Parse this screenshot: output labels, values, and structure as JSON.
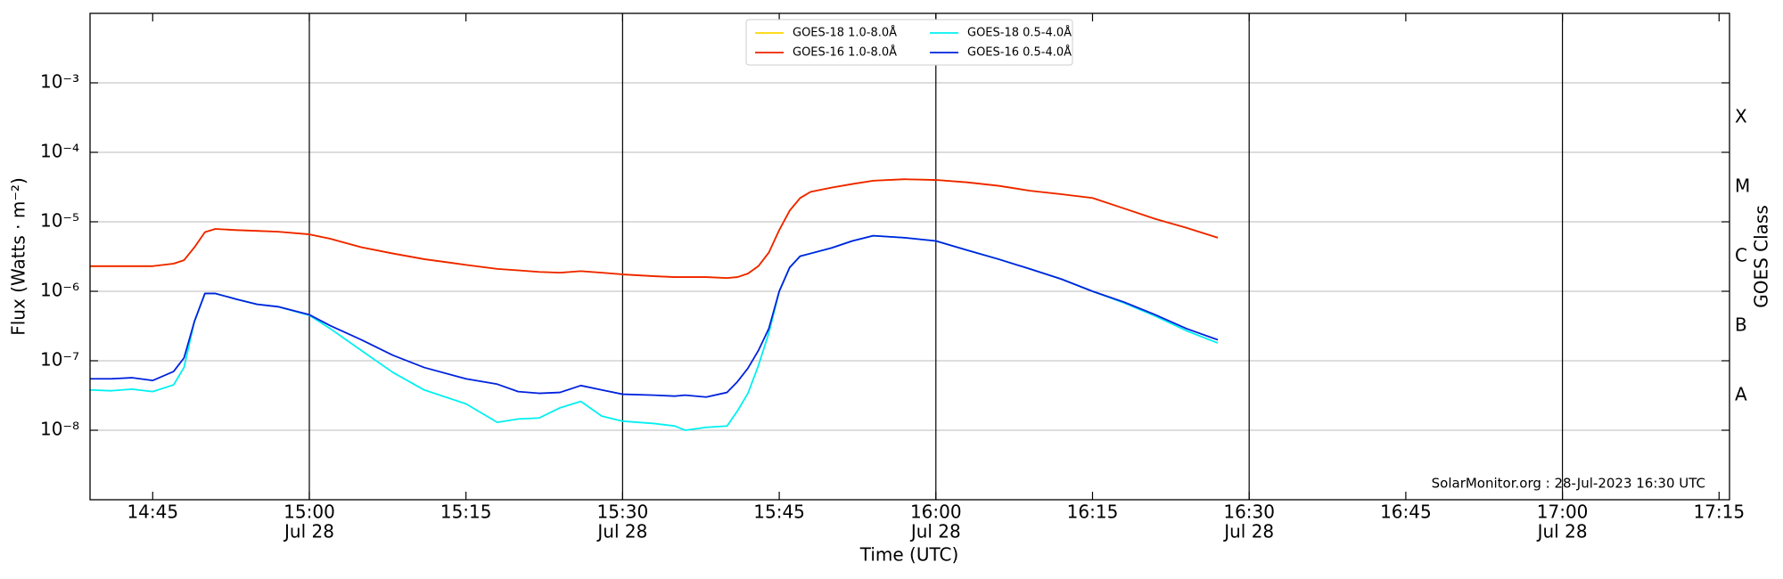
{
  "chart_data": {
    "type": "line",
    "xlabel": "Time (UTC)",
    "ylabel": "Flux (Watts · m⁻²)",
    "y2label": "GOES Class",
    "footnote": "SolarMonitor.org : 28-Jul-2023 16:30 UTC",
    "log_y": true,
    "grid": true,
    "legend": "top-center",
    "xlim": [
      "14:39",
      "17:16"
    ],
    "ylim": [
      1e-09,
      0.01
    ],
    "xticks": [
      {
        "value": "14:45",
        "label": "14:45"
      },
      {
        "value": "15:00",
        "label": "15:00",
        "date": "Jul 28"
      },
      {
        "value": "15:15",
        "label": "15:15"
      },
      {
        "value": "15:30",
        "label": "15:30",
        "date": "Jul 28"
      },
      {
        "value": "15:45",
        "label": "15:45"
      },
      {
        "value": "16:00",
        "label": "16:00",
        "date": "Jul 28"
      },
      {
        "value": "16:15",
        "label": "16:15"
      },
      {
        "value": "16:30",
        "label": "16:30",
        "date": "Jul 28"
      },
      {
        "value": "16:45",
        "label": "16:45"
      },
      {
        "value": "17:00",
        "label": "17:00",
        "date": "Jul 28"
      },
      {
        "value": "17:15",
        "label": "17:15"
      }
    ],
    "yticks": [
      {
        "value": 1e-08,
        "label": "10⁻⁸"
      },
      {
        "value": 1e-07,
        "label": "10⁻⁷"
      },
      {
        "value": 1e-06,
        "label": "10⁻⁶"
      },
      {
        "value": 1e-05,
        "label": "10⁻⁵"
      },
      {
        "value": 0.0001,
        "label": "10⁻⁴"
      },
      {
        "value": 0.001,
        "label": "10⁻³"
      }
    ],
    "class_ticks": [
      {
        "value": 3.16e-08,
        "label": "A"
      },
      {
        "value": 3.16e-07,
        "label": "B"
      },
      {
        "value": 3.16e-06,
        "label": "C"
      },
      {
        "value": 3.16e-05,
        "label": "M"
      },
      {
        "value": 0.000316,
        "label": "X"
      }
    ],
    "x": [
      "14:39",
      "14:41",
      "14:43",
      "14:45",
      "14:47",
      "14:48",
      "14:49",
      "14:50",
      "14:51",
      "14:53",
      "14:55",
      "14:57",
      "15:00",
      "15:02",
      "15:05",
      "15:08",
      "15:11",
      "15:15",
      "15:18",
      "15:20",
      "15:22",
      "15:24",
      "15:26",
      "15:28",
      "15:30",
      "15:33",
      "15:35",
      "15:36",
      "15:38",
      "15:40",
      "15:41",
      "15:42",
      "15:43",
      "15:44",
      "15:45",
      "15:46",
      "15:47",
      "15:48",
      "15:50",
      "15:52",
      "15:54",
      "15:57",
      "16:00",
      "16:03",
      "16:06",
      "16:09",
      "16:12",
      "16:15",
      "16:18",
      "16:21",
      "16:24",
      "16:27"
    ],
    "series": [
      {
        "name": "GOES-18 1.0-8.0Å",
        "color": "#ffd700",
        "values": [
          2.3e-06,
          2.3e-06,
          2.3e-06,
          2.3e-06,
          2.5e-06,
          2.8e-06,
          4.3e-06,
          7.1e-06,
          7.9e-06,
          7.6e-06,
          7.4e-06,
          7.2e-06,
          6.6e-06,
          5.7e-06,
          4.3e-06,
          3.5e-06,
          2.9e-06,
          2.4e-06,
          2.1e-06,
          2e-06,
          1.9e-06,
          1.85e-06,
          1.95e-06,
          1.85e-06,
          1.75e-06,
          1.65e-06,
          1.6e-06,
          1.6e-06,
          1.6e-06,
          1.55e-06,
          1.6e-06,
          1.8e-06,
          2.3e-06,
          3.6e-06,
          7.6e-06,
          1.45e-05,
          2.2e-05,
          2.7e-05,
          3.1e-05,
          3.5e-05,
          3.9e-05,
          4.1e-05,
          4e-05,
          3.7e-05,
          3.3e-05,
          2.8e-05,
          2.5e-05,
          2.2e-05,
          1.56e-05,
          1.1e-05,
          8.2e-06,
          5.9e-06
        ]
      },
      {
        "name": "GOES-16 1.0-8.0Å",
        "color": "#ee2200",
        "values": [
          2.3e-06,
          2.3e-06,
          2.3e-06,
          2.3e-06,
          2.5e-06,
          2.8e-06,
          4.3e-06,
          7.1e-06,
          7.9e-06,
          7.6e-06,
          7.4e-06,
          7.2e-06,
          6.6e-06,
          5.7e-06,
          4.3e-06,
          3.5e-06,
          2.9e-06,
          2.4e-06,
          2.1e-06,
          2e-06,
          1.9e-06,
          1.85e-06,
          1.95e-06,
          1.85e-06,
          1.75e-06,
          1.65e-06,
          1.6e-06,
          1.6e-06,
          1.6e-06,
          1.55e-06,
          1.6e-06,
          1.8e-06,
          2.3e-06,
          3.6e-06,
          7.6e-06,
          1.45e-05,
          2.2e-05,
          2.7e-05,
          3.1e-05,
          3.5e-05,
          3.9e-05,
          4.1e-05,
          4e-05,
          3.7e-05,
          3.3e-05,
          2.8e-05,
          2.5e-05,
          2.2e-05,
          1.56e-05,
          1.1e-05,
          8.2e-06,
          5.9e-06
        ]
      },
      {
        "name": "GOES-18 0.5-4.0Å",
        "color": "#00f0f0",
        "values": [
          3.8e-08,
          3.7e-08,
          3.9e-08,
          3.6e-08,
          4.5e-08,
          8e-08,
          3.7e-07,
          9.3e-07,
          9.3e-07,
          7.7e-07,
          6.5e-07,
          6e-07,
          4.5e-07,
          2.9e-07,
          1.4e-07,
          6.8e-08,
          3.8e-08,
          2.4e-08,
          1.3e-08,
          1.45e-08,
          1.5e-08,
          2.1e-08,
          2.6e-08,
          1.6e-08,
          1.35e-08,
          1.25e-08,
          1.15e-08,
          1e-08,
          1.1e-08,
          1.15e-08,
          1.9e-08,
          3.4e-08,
          8.5e-08,
          2.5e-07,
          1e-06,
          2.2e-06,
          3.2e-06,
          3.5e-06,
          4.2e-06,
          5.3e-06,
          6.3e-06,
          5.9e-06,
          5.3e-06,
          3.9e-06,
          2.9e-06,
          2.1e-06,
          1.5e-06,
          1e-06,
          6.8e-07,
          4.4e-07,
          2.7e-07,
          1.8e-07
        ]
      },
      {
        "name": "GOES-16 0.5-4.0Å",
        "color": "#0022dd",
        "values": [
          5.5e-08,
          5.5e-08,
          5.7e-08,
          5.2e-08,
          7e-08,
          1.1e-07,
          3.7e-07,
          9.3e-07,
          9.3e-07,
          7.7e-07,
          6.5e-07,
          6e-07,
          4.6e-07,
          3.2e-07,
          2e-07,
          1.2e-07,
          8e-08,
          5.5e-08,
          4.6e-08,
          3.6e-08,
          3.4e-08,
          3.5e-08,
          4.4e-08,
          3.8e-08,
          3.3e-08,
          3.2e-08,
          3.1e-08,
          3.2e-08,
          3e-08,
          3.5e-08,
          5e-08,
          7.8e-08,
          1.4e-07,
          2.9e-07,
          1e-06,
          2.2e-06,
          3.2e-06,
          3.5e-06,
          4.2e-06,
          5.3e-06,
          6.3e-06,
          5.9e-06,
          5.3e-06,
          3.9e-06,
          2.9e-06,
          2.1e-06,
          1.5e-06,
          1e-06,
          7e-07,
          4.6e-07,
          2.9e-07,
          2e-07
        ]
      }
    ]
  }
}
